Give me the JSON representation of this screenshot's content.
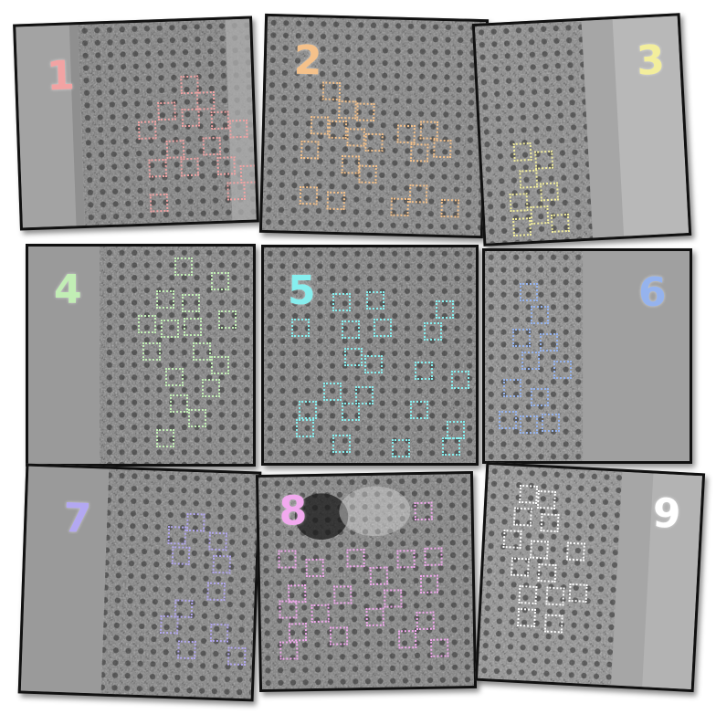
{
  "panels": [
    {
      "label": "1",
      "color": "#f2a3a3"
    },
    {
      "label": "2",
      "color": "#f5c18a"
    },
    {
      "label": "3",
      "color": "#f3ee9c"
    },
    {
      "label": "4",
      "color": "#c2eeb5"
    },
    {
      "label": "5",
      "color": "#86efef"
    },
    {
      "label": "6",
      "color": "#95b3ee"
    },
    {
      "label": "7",
      "color": "#b3a8f2"
    },
    {
      "label": "8",
      "color": "#f2a9ef"
    },
    {
      "label": "9",
      "color": "#ffffff"
    }
  ]
}
